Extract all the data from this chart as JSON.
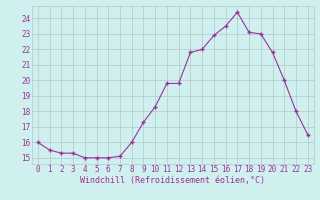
{
  "x": [
    0,
    1,
    2,
    3,
    4,
    5,
    6,
    7,
    8,
    9,
    10,
    11,
    12,
    13,
    14,
    15,
    16,
    17,
    18,
    19,
    20,
    21,
    22,
    23
  ],
  "y": [
    16.0,
    15.5,
    15.3,
    15.3,
    15.0,
    15.0,
    15.0,
    15.1,
    16.0,
    17.3,
    18.3,
    19.8,
    19.8,
    21.8,
    22.0,
    22.9,
    23.5,
    24.4,
    23.1,
    23.0,
    21.8,
    20.0,
    18.0,
    16.5
  ],
  "xlabel": "Windchill (Refroidissement éolien,°C)",
  "ylim_min": 14.6,
  "ylim_max": 24.8,
  "xlim_min": -0.5,
  "xlim_max": 23.5,
  "yticks": [
    15,
    16,
    17,
    18,
    19,
    20,
    21,
    22,
    23,
    24
  ],
  "xticks": [
    0,
    1,
    2,
    3,
    4,
    5,
    6,
    7,
    8,
    9,
    10,
    11,
    12,
    13,
    14,
    15,
    16,
    17,
    18,
    19,
    20,
    21,
    22,
    23
  ],
  "line_color": "#993399",
  "bg_color": "#d0f0f0",
  "grid_color": "#b0c8c8",
  "tick_fontsize": 5.5,
  "xlabel_fontsize": 6.0
}
